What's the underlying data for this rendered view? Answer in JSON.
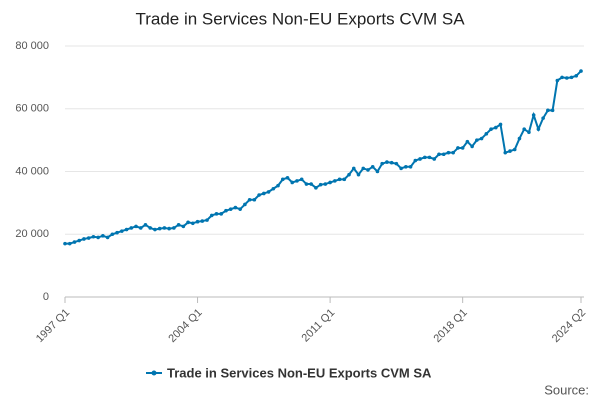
{
  "chart_data": {
    "type": "line",
    "title": "Trade in Services Non-EU Exports CVM SA",
    "source": "Source:",
    "categories": [
      "1997 Q1",
      null,
      null,
      null,
      null,
      null,
      null,
      null,
      null,
      null,
      null,
      null,
      null,
      null,
      null,
      null,
      null,
      null,
      null,
      null,
      null,
      null,
      null,
      null,
      null,
      null,
      null,
      null,
      "2004 Q1",
      null,
      null,
      null,
      null,
      null,
      null,
      null,
      null,
      null,
      null,
      null,
      null,
      null,
      null,
      null,
      null,
      null,
      null,
      null,
      null,
      null,
      null,
      null,
      null,
      null,
      null,
      null,
      "2011 Q1",
      null,
      null,
      null,
      null,
      null,
      null,
      null,
      null,
      null,
      null,
      null,
      null,
      null,
      null,
      null,
      null,
      null,
      null,
      null,
      null,
      null,
      null,
      null,
      null,
      null,
      null,
      null,
      "2018 Q1",
      null,
      null,
      null,
      null,
      null,
      null,
      null,
      null,
      null,
      null,
      null,
      null,
      null,
      null,
      null,
      null,
      null,
      null,
      null,
      null,
      null,
      null,
      null,
      null,
      "2024 Q2"
    ],
    "series": [
      {
        "name": "Trade in Services Non-EU Exports CVM SA",
        "color": "#0075b0",
        "values": [
          17000,
          17000,
          17500,
          18000,
          18500,
          18800,
          19200,
          19000,
          19500,
          19000,
          20000,
          20500,
          21000,
          21500,
          22000,
          22500,
          22000,
          23000,
          22000,
          21500,
          21800,
          22000,
          21800,
          22000,
          23000,
          22500,
          23800,
          23500,
          24000,
          24200,
          24500,
          26000,
          26500,
          26500,
          27500,
          28000,
          28500,
          28000,
          29500,
          31000,
          31000,
          32500,
          33000,
          33500,
          34500,
          35500,
          37500,
          38000,
          36500,
          37000,
          37500,
          36000,
          36000,
          34800,
          35800,
          36000,
          36500,
          37000,
          37500,
          37500,
          39000,
          41000,
          39000,
          41000,
          40500,
          41500,
          40000,
          42500,
          43000,
          42800,
          42500,
          41000,
          41500,
          41500,
          43500,
          44000,
          44500,
          44500,
          44000,
          45500,
          45500,
          46000,
          46000,
          47500,
          47500,
          49500,
          48000,
          50000,
          50500,
          52000,
          53500,
          54000,
          55000,
          46000,
          46500,
          47000,
          50500,
          53500,
          52500,
          58000,
          53500,
          57000,
          59500,
          59500,
          69000,
          70000,
          69800,
          70000,
          70500,
          72000
        ]
      }
    ],
    "ylim": [
      0,
      80000
    ],
    "yticks": [
      0,
      {
        "value": 20000,
        "label": "20 000"
      },
      {
        "value": 40000,
        "label": "40 000"
      },
      {
        "value": 60000,
        "label": "60 000"
      },
      {
        "value": 80000,
        "label": "80 000"
      }
    ],
    "grid": true
  }
}
